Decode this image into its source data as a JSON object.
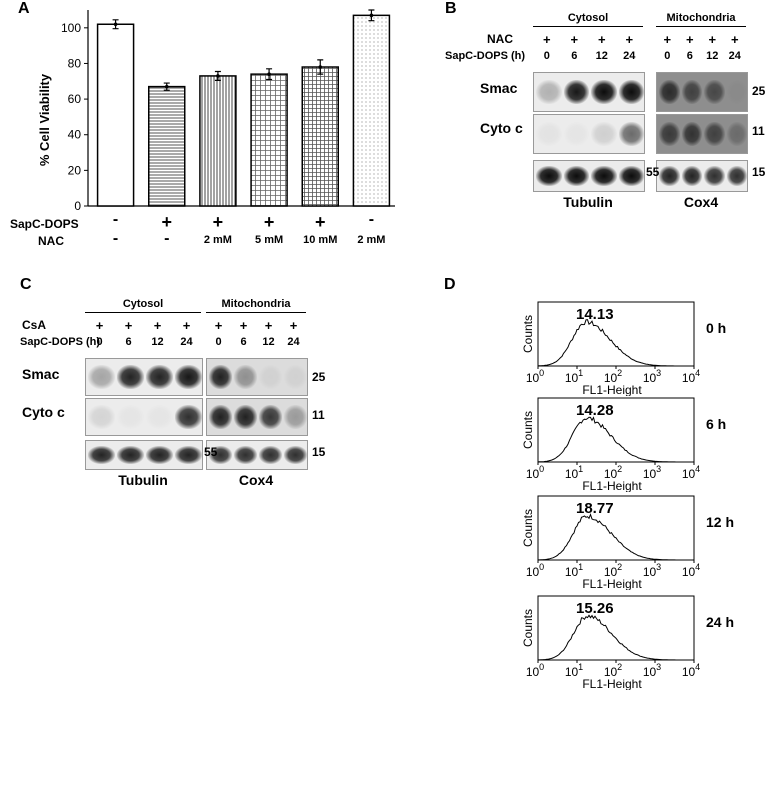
{
  "panel_letters": {
    "a": "A",
    "b": "B",
    "c": "C",
    "d": "D"
  },
  "chart_data": {
    "type": "bar",
    "ylabel": "% Cell Viability",
    "ylim": [
      0,
      110
    ],
    "yticks": [
      0,
      20,
      40,
      60,
      80,
      100
    ],
    "categories": [
      {
        "sapc": "-",
        "nac": "-"
      },
      {
        "sapc": "+",
        "nac": "-"
      },
      {
        "sapc": "+",
        "nac": "2 mM"
      },
      {
        "sapc": "+",
        "nac": "5 mM"
      },
      {
        "sapc": "+",
        "nac": "10 mM"
      },
      {
        "sapc": "-",
        "nac": "2 mM"
      }
    ],
    "row_labels": {
      "sapc": "SapC-DOPS",
      "nac": "NAC"
    },
    "values": [
      102,
      67,
      73,
      74,
      78,
      107
    ],
    "errors": [
      2.5,
      2,
      2.5,
      3,
      4,
      3
    ],
    "patterns": [
      "none",
      "hlines",
      "vlines",
      "grid",
      "grid-dense",
      "dots"
    ]
  },
  "panel_b": {
    "treatment_label": "NAC",
    "time_label": "SapC-DOPS (h)",
    "cytosol_title": "Cytosol",
    "mito_title": "Mitochondria",
    "plus": [
      "+",
      "+",
      "+",
      "+"
    ],
    "times": [
      "0",
      "6",
      "12",
      "24"
    ],
    "rows": [
      "Smac",
      "Cyto c"
    ],
    "mw_right": [
      "25",
      "11",
      "15"
    ],
    "mw_tubulin": "55",
    "loading_cytosol": "Tubulin",
    "loading_mito": "Cox4"
  },
  "panel_c": {
    "treatment_label": "CsA",
    "time_label": "SapC-DOPS (h)",
    "cytosol_title": "Cytosol",
    "mito_title": "Mitochondria",
    "plus": [
      "+",
      "+",
      "+",
      "+"
    ],
    "times": [
      "0",
      "6",
      "12",
      "24"
    ],
    "rows": [
      "Smac",
      "Cyto c"
    ],
    "mw_right": [
      "25",
      "11",
      "15"
    ],
    "mw_tubulin": "55",
    "loading_cytosol": "Tubulin",
    "loading_mito": "Cox4"
  },
  "flow": {
    "ylabel": "Counts",
    "xlabel": "FL1-Height",
    "xticks": [
      "10",
      "10",
      "10",
      "10",
      "10"
    ],
    "xexps": [
      "0",
      "1",
      "2",
      "3",
      "4"
    ],
    "histograms": [
      {
        "mean": "14.13",
        "time": "0 h"
      },
      {
        "mean": "14.28",
        "time": "6 h"
      },
      {
        "mean": "18.77",
        "time": "12 h"
      },
      {
        "mean": "15.26",
        "time": "24 h"
      }
    ]
  }
}
